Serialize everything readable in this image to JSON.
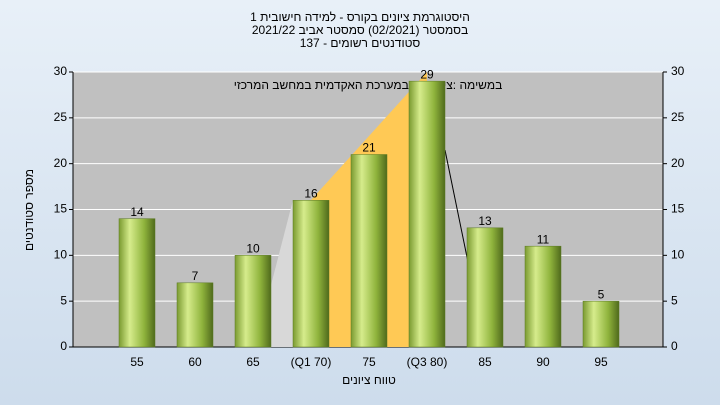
{
  "chart_data": {
    "type": "bar",
    "title": "היסטוגרמת ציונים בקורס - למידה חישובית 1",
    "subtitle": "בסמסטר (02/2021) סמסטר אביב 2021/22",
    "subtitle2": "סטודנטים רשומים - 137",
    "annotation": "במשימה :ציון סופי במערכת האקדמית במחשב המרכזי",
    "x_label": "טווח ציונים",
    "y_label": "מספר סטודנטים",
    "categories": [
      "55",
      "60",
      "65",
      "(Q1 70)",
      "75",
      "(Q3 80)",
      "85",
      "90",
      "95"
    ],
    "values": [
      14,
      7,
      10,
      16,
      21,
      29,
      13,
      11,
      5
    ],
    "color": "#9bc24a",
    "ylim": [
      0,
      30
    ],
    "yticks": [
      0,
      5,
      10,
      15,
      20,
      25,
      30
    ],
    "y2lim": [
      0,
      30
    ],
    "y2ticks": [
      0,
      5,
      10,
      15,
      20,
      25,
      30
    ],
    "grid": true
  }
}
